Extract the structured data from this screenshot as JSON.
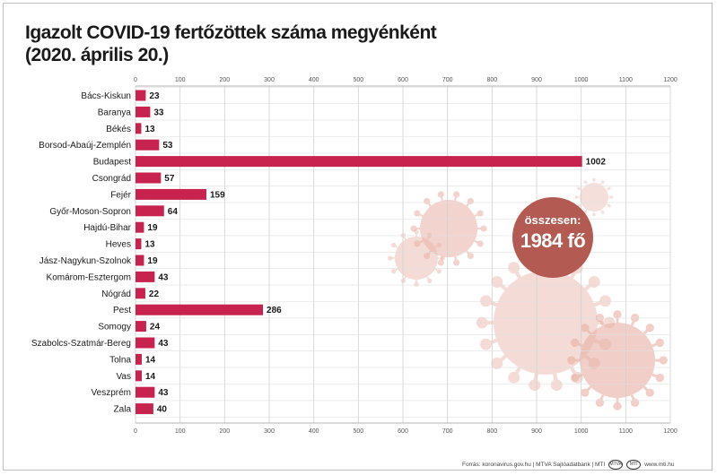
{
  "title": {
    "line1": "Igazolt COVID-19 fertőzöttek száma megyénként",
    "line2": "(2020. április 20.)"
  },
  "total": {
    "label": "összesen:",
    "value": "1984 fő"
  },
  "footer": {
    "source": "Forrás: koronavirus.gov.hu | MTVA Sajtóadatbank | MTI",
    "site": "www.mti.hu"
  },
  "colors": {
    "bar": "#c8234e",
    "virus": "#e8b0a5",
    "total_circle": "#b35a52"
  },
  "chart_data": {
    "type": "bar",
    "orientation": "horizontal",
    "categories": [
      "Bács-Kiskun",
      "Baranya",
      "Békés",
      "Borsod-Abaúj-Zemplén",
      "Budapest",
      "Csongrád",
      "Fejér",
      "Győr-Moson-Sopron",
      "Hajdú-Bihar",
      "Heves",
      "Jász-Nagykun-Szolnok",
      "Komárom-Esztergom",
      "Nógrád",
      "Pest",
      "Somogy",
      "Szabolcs-Szatmár-Bereg",
      "Tolna",
      "Vas",
      "Veszprém",
      "Zala"
    ],
    "values": [
      23,
      33,
      13,
      53,
      1002,
      57,
      159,
      64,
      19,
      13,
      19,
      43,
      22,
      286,
      24,
      43,
      14,
      14,
      43,
      40
    ],
    "xlim": [
      0,
      1200
    ],
    "ticks": [
      0,
      100,
      200,
      300,
      400,
      500,
      600,
      700,
      800,
      900,
      1000,
      1100,
      1200
    ],
    "grid": true,
    "axis_position": "top and bottom"
  }
}
